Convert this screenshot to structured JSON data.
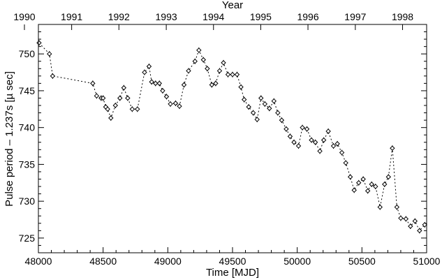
{
  "chart_data": {
    "type": "scatter",
    "title": "",
    "xlabel": "Time [MJD]",
    "ylabel": "Pulse period – 1.237s [µ sec]",
    "top_axis_label": "Year",
    "xlim": [
      48000,
      51000
    ],
    "ylim": [
      723,
      754
    ],
    "x_ticks": [
      48000,
      48500,
      49000,
      49500,
      50000,
      50500,
      51000
    ],
    "x_tick_labels": [
      "48000",
      "48500",
      "49000",
      "49500",
      "50000",
      "50500",
      "51000"
    ],
    "y_ticks": [
      725,
      730,
      735,
      740,
      745,
      750
    ],
    "y_tick_labels": [
      "725",
      "730",
      "735",
      "740",
      "745",
      "750"
    ],
    "top_ticks": [
      47892,
      48257,
      48622,
      48988,
      49353,
      49718,
      50083,
      50449,
      50814
    ],
    "top_tick_labels": [
      "1990",
      "1991",
      "1992",
      "1993",
      "1994",
      "1995",
      "1996",
      "1997",
      "1998"
    ],
    "grid": false,
    "marker": "diamond",
    "connector": "dotted",
    "series": [
      {
        "x": [
          48005,
          48085,
          48110,
          48420,
          48450,
          48485,
          48500,
          48520,
          48535,
          48560,
          48595,
          48630,
          48660,
          48690,
          48725,
          48765,
          48820,
          48855,
          48875,
          48905,
          48935,
          48960,
          48990,
          49020,
          49060,
          49090,
          49125,
          49160,
          49210,
          49240,
          49275,
          49305,
          49340,
          49370,
          49400,
          49430,
          49465,
          49500,
          49535,
          49565,
          49590,
          49625,
          49660,
          49690,
          49720,
          49750,
          49785,
          49820,
          49850,
          49880,
          49915,
          49945,
          49975,
          50010,
          50040,
          50075,
          50110,
          50140,
          50175,
          50205,
          50240,
          50280,
          50310,
          50345,
          50375,
          50410,
          50440,
          50475,
          50510,
          50545,
          50575,
          50605,
          50640,
          50675,
          50705,
          50735,
          50770,
          50800,
          50840,
          50875,
          50910,
          50945,
          50985
        ],
        "y": [
          751.5,
          750.0,
          747.0,
          746.0,
          744.3,
          744.0,
          744.0,
          742.8,
          742.5,
          741.3,
          743.0,
          744.0,
          745.4,
          744.0,
          742.5,
          742.5,
          747.5,
          748.3,
          746.2,
          746.0,
          746.0,
          745.0,
          744.2,
          743.2,
          743.3,
          742.9,
          745.8,
          747.7,
          749.0,
          750.5,
          749.2,
          748.0,
          745.8,
          746.0,
          747.7,
          748.8,
          747.2,
          747.2,
          747.2,
          745.5,
          743.8,
          742.8,
          742.0,
          741.1,
          744.0,
          743.2,
          742.6,
          743.6,
          742.0,
          741.0,
          739.8,
          738.8,
          738.0,
          737.5,
          740.0,
          739.8,
          738.3,
          738.0,
          736.8,
          738.3,
          739.5,
          737.5,
          737.8,
          736.6,
          735.2,
          733.3,
          731.5,
          732.5,
          733.0,
          731.4,
          732.3,
          732.0,
          729.2,
          732.3,
          733.3,
          737.2,
          729.2,
          727.7,
          727.6,
          726.6,
          727.3,
          726.0,
          726.8
        ]
      }
    ]
  }
}
